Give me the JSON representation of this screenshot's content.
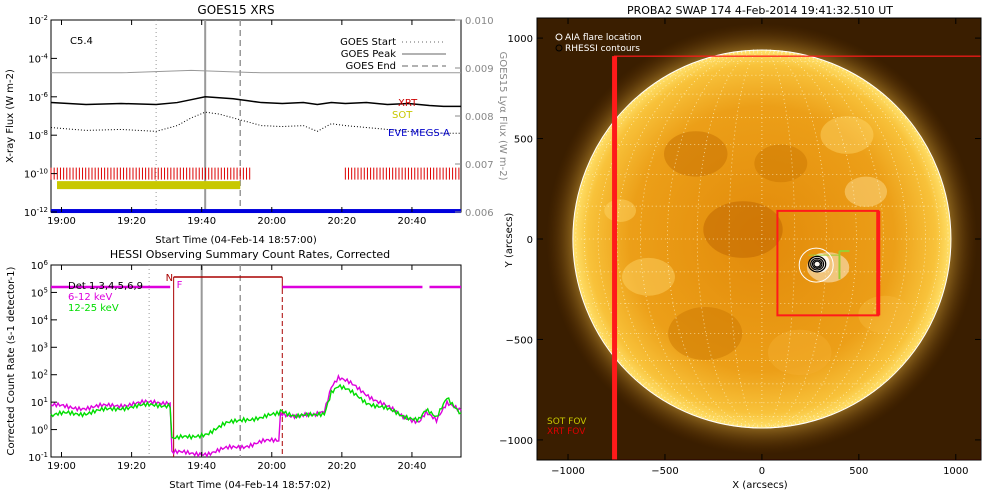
{
  "chart_data": [
    {
      "type": "line",
      "title": "GOES15 XRS",
      "xlabel": "Start Time (04-Feb-14 18:57:00)",
      "ylabel": "X-ray Flux (W m-2)",
      "ylabel2": "GOES15 Lyα Flux (W m-2)",
      "x_ticks": [
        "19:00",
        "19:20",
        "19:40",
        "20:00",
        "20:20",
        "20:40"
      ],
      "y_ticks": [
        "10-12",
        "10-10",
        "10-8",
        "10-6",
        "10-4",
        "10-2"
      ],
      "y2_ticks": [
        "0.006",
        "0.007",
        "0.008",
        "0.009",
        "0.010"
      ],
      "y_log_range": [
        -12,
        -2
      ],
      "y2_range": [
        0.006,
        0.01
      ],
      "x_range_min": [
        0,
        117
      ],
      "flare_class": "C5.4",
      "legend": [
        {
          "name": "GOES Start",
          "style": "dotted"
        },
        {
          "name": "GOES Peak",
          "style": "solid"
        },
        {
          "name": "GOES End",
          "style": "dashed"
        }
      ],
      "event_markers_min": {
        "start": 30,
        "peak": 44,
        "end": 54
      },
      "instrument_labels": [
        {
          "name": "XRT",
          "color": "#cc0000"
        },
        {
          "name": "SOT",
          "color": "#c8c800"
        },
        {
          "name": "EVE MEGS-A",
          "color": "#0000cc"
        }
      ],
      "series": [
        {
          "name": "XRT",
          "color": "#dd0000",
          "coverage_min": [
            [
              0,
              57
            ],
            [
              84,
              117
            ]
          ]
        },
        {
          "name": "SOT",
          "color": "#c8c800",
          "coverage_min": [
            [
              0,
              54
            ]
          ]
        },
        {
          "name": "EVE MEGS-A",
          "color": "#0000dd",
          "coverage_min": [
            [
              0,
              117
            ]
          ]
        },
        {
          "x_min": [
            0,
            10,
            20,
            30,
            36,
            40,
            44,
            48,
            52,
            56,
            60,
            66,
            72,
            76,
            80,
            84,
            90,
            96,
            102,
            108,
            112,
            117
          ],
          "log_flux": [
            -6.3,
            -6.4,
            -6.35,
            -6.4,
            -6.3,
            -6.15,
            -6.0,
            -6.05,
            -6.1,
            -6.2,
            -6.3,
            -6.35,
            -6.3,
            -6.4,
            -6.3,
            -6.35,
            -6.3,
            -6.4,
            -6.35,
            -6.45,
            -6.5,
            -6.5
          ]
        },
        {
          "x_min": [
            0,
            10,
            20,
            30,
            36,
            40,
            44,
            48,
            52,
            56,
            60,
            66,
            72,
            76,
            80,
            84,
            90,
            96,
            102,
            108,
            112,
            117
          ],
          "log_flux": [
            -7.6,
            -7.75,
            -7.7,
            -7.8,
            -7.5,
            -7.1,
            -6.8,
            -6.9,
            -7.1,
            -7.3,
            -7.5,
            -7.55,
            -7.5,
            -7.8,
            -7.4,
            -7.5,
            -7.6,
            -7.7,
            -7.8,
            -7.85,
            -7.9,
            -7.9
          ]
        },
        {
          "x_min": [
            0,
            20,
            40,
            60,
            80,
            100,
            117
          ],
          "lya": [
            0.0089,
            0.0089,
            0.00895,
            0.0089,
            0.0089,
            0.0089,
            0.0089
          ]
        }
      ]
    },
    {
      "type": "line",
      "title": "HESSI Observing Summary Count Rates, Corrected",
      "xlabel": "Start Time (04-Feb-14 18:57:02)",
      "ylabel": "Corrected Count Rate (s-1 detector-1)",
      "x_ticks": [
        "19:00",
        "19:20",
        "19:40",
        "20:00",
        "20:20",
        "20:40"
      ],
      "y_ticks": [
        "10-1",
        "100",
        "101",
        "102",
        "103",
        "104",
        "105",
        "106"
      ],
      "y_log_range": [
        -1,
        6
      ],
      "x_range_min": [
        0,
        117
      ],
      "legend": [
        {
          "name": "Det 1,3,4,5,6,9",
          "color": "#000000"
        },
        {
          "name": "6-12 keV",
          "color": "#dd00dd"
        },
        {
          "name": "12-25 keV",
          "color": "#00dd00"
        }
      ],
      "attenuator_labels": [
        {
          "text": "N",
          "color": "#aa0000"
        },
        {
          "text": "F",
          "color": "#dd00dd"
        }
      ],
      "night_interval_min": [
        35,
        66
      ],
      "markers_min": {
        "start": 28,
        "peak": 43,
        "end": 54
      },
      "series": [
        {
          "name": "6-12 keV",
          "color": "#dd00dd",
          "x_min": [
            0,
            5,
            10,
            20,
            30,
            34,
            35,
            40,
            45,
            50,
            55,
            60,
            65,
            66,
            70,
            75,
            78,
            80,
            82,
            85,
            90,
            95,
            100,
            105,
            107,
            110,
            113,
            115,
            117
          ],
          "log_rate": [
            0.9,
            0.8,
            0.8,
            0.9,
            1.0,
            1.0,
            -0.8,
            -0.9,
            -0.85,
            -0.7,
            -0.6,
            -0.45,
            -0.4,
            0.6,
            0.5,
            0.5,
            0.7,
            1.6,
            1.9,
            1.7,
            1.3,
            0.9,
            0.5,
            0.3,
            0.6,
            0.3,
            1.0,
            0.9,
            0.7
          ]
        },
        {
          "name": "12-25 keV",
          "color": "#00dd00",
          "x_min": [
            0,
            5,
            10,
            20,
            30,
            34,
            35,
            40,
            45,
            50,
            55,
            60,
            65,
            66,
            70,
            75,
            78,
            80,
            82,
            85,
            90,
            95,
            100,
            105,
            107,
            110,
            113,
            115,
            117
          ],
          "log_rate": [
            0.5,
            0.6,
            0.6,
            0.8,
            0.9,
            0.9,
            -0.3,
            -0.3,
            -0.1,
            0.2,
            0.4,
            0.4,
            0.6,
            0.7,
            0.5,
            0.5,
            0.6,
            1.4,
            1.6,
            1.4,
            1.0,
            0.8,
            0.5,
            0.4,
            0.7,
            0.4,
            1.2,
            0.9,
            0.6
          ]
        },
        {
          "name": "Det 1,3,4,5,6,9",
          "color": "#dd00dd",
          "level_log": 5.2,
          "coverage_min": [
            [
              0,
              34
            ],
            [
              66,
              106
            ],
            [
              108,
              117
            ]
          ]
        }
      ]
    },
    {
      "type": "image",
      "title": "PROBA2 SWAP 174   4-Feb-2014 19:41:32.510 UT",
      "xlabel": "X (arcsecs)",
      "ylabel": "Y (arcsecs)",
      "x_ticks": [
        -1000,
        -500,
        0,
        500,
        1000
      ],
      "y_ticks": [
        -1000,
        -500,
        0,
        500,
        1000
      ],
      "x_range": [
        -1160,
        1130
      ],
      "y_range": [
        -1100,
        1100
      ],
      "solar_radius_arcsec": 975,
      "legend": [
        {
          "name": "AIA flare location",
          "color": "#ffffff"
        },
        {
          "name": "RHESSI contours",
          "color": "#000000"
        }
      ],
      "fov_labels": [
        {
          "name": "SOT FOV",
          "color": "#c8c800"
        },
        {
          "name": "XRT FOV",
          "color": "#dd0000"
        }
      ],
      "xrt_fov": {
        "x": [
          -760,
          1130
        ],
        "y": [
          -1100,
          910
        ]
      },
      "sot_fov": {
        "x": [
          80,
          600
        ],
        "y": [
          -380,
          140
        ]
      },
      "flare_location": [
        280,
        -130
      ],
      "hessi_contours": {
        "center": [
          285,
          -125
        ],
        "radii_arcsec": [
          40,
          30,
          22,
          15
        ]
      }
    }
  ],
  "colors": {
    "sun_bright": "#ffd24a",
    "sun_mid": "#e89a10",
    "sun_dark": "#7a4300",
    "red": "#ff1a1a",
    "green": "#9acd32"
  }
}
